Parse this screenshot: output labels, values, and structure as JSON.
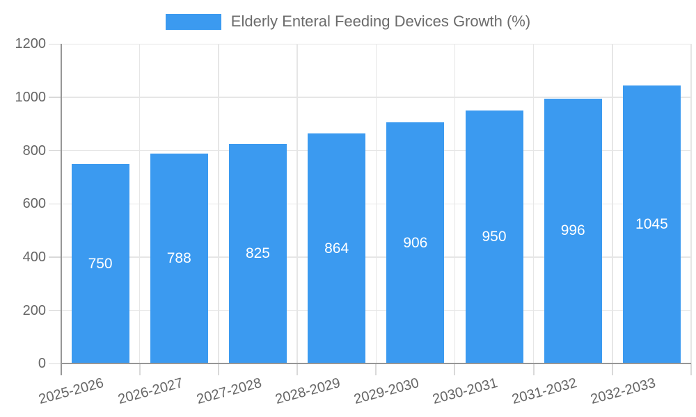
{
  "legend": {
    "label": "Elderly Enteral Feeding Devices Growth (%)"
  },
  "chart_data": {
    "type": "bar",
    "title": "Elderly Enteral Feeding Devices Growth (%)",
    "series_name": "Elderly Enteral Feeding Devices Growth (%)",
    "categories": [
      "2025-2026",
      "2026-2027",
      "2027-2028",
      "2028-2029",
      "2029-2030",
      "2030-2031",
      "2031-2032",
      "2032-2033"
    ],
    "values": [
      750,
      788,
      825,
      864,
      906,
      950,
      996,
      1045
    ],
    "value_labels": [
      "750",
      "788",
      "825",
      "864",
      "906",
      "950",
      "996",
      "1045"
    ],
    "xlabel": "",
    "ylabel": "",
    "ylim": [
      0,
      1200
    ],
    "y_ticks": [
      0,
      200,
      400,
      600,
      800,
      1000,
      1200
    ],
    "grid": true,
    "legend_position": "top",
    "colors": {
      "bar": "#3b9af0",
      "value_label": "#ffffff",
      "tick_text": "#666666",
      "legend_text": "#6b6b6b",
      "grid_line": "#e6e6e6",
      "axis_line": "#969696",
      "background": "#ffffff"
    }
  }
}
